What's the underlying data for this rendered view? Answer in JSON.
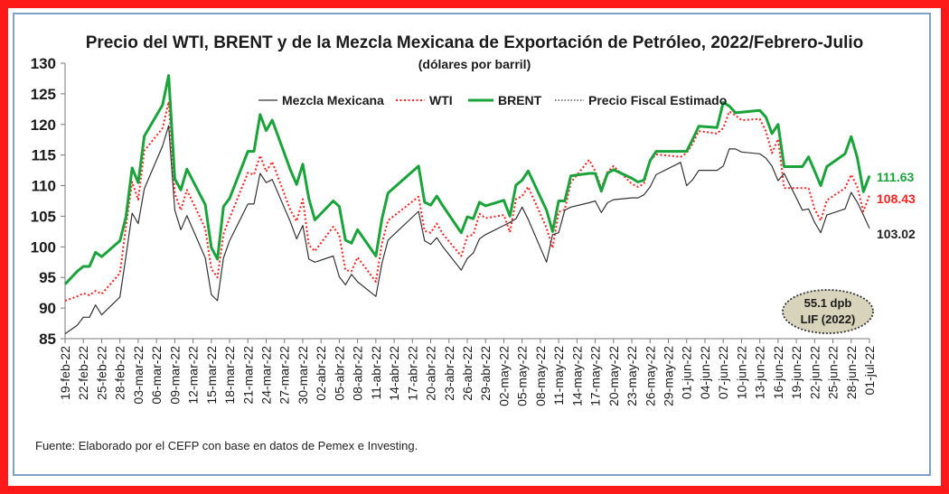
{
  "chart_data": {
    "type": "line",
    "title": "Precio del WTI, BRENT y de la Mezcla Mexicana de Exportación de Petróleo, 2022/Febrero-Julio",
    "subtitle": "(dólares por barril)",
    "source": "Fuente: Elaborado por el CEFP con base en datos de Pemex e Investing.",
    "ylim": [
      85,
      130
    ],
    "yticks": [
      85,
      90,
      95,
      100,
      105,
      110,
      115,
      120,
      125,
      130
    ],
    "xlabels": [
      "19-feb-22",
      "22-feb-22",
      "25-feb-22",
      "28-feb-22",
      "03-mar-22",
      "06-mar-22",
      "09-mar-22",
      "12-mar-22",
      "15-mar-22",
      "18-mar-22",
      "21-mar-22",
      "24-mar-22",
      "27-mar-22",
      "30-mar-22",
      "02-abr-22",
      "05-abr-22",
      "08-abr-22",
      "11-abr-22",
      "14-abr-22",
      "17-abr-22",
      "20-abr-22",
      "23-abr-22",
      "26-abr-22",
      "29-abr-22",
      "02-may-22",
      "05-may-22",
      "08-may-22",
      "11-may-22",
      "14-may-22",
      "17-may-22",
      "20-may-22",
      "23-may-22",
      "26-may-22",
      "29-may-22",
      "01-jun-22",
      "04-jun-22",
      "07-jun-22",
      "10-jun-22",
      "13-jun-22",
      "16-jun-22",
      "19-jun-22",
      "22-jun-22",
      "25-jun-22",
      "28-jun-22",
      "01-jul-22"
    ],
    "x_start": "19-feb-22",
    "x_end": "01-jul-22",
    "grid": false,
    "legend_placement": "top",
    "series": [
      {
        "name": "Mezcla Mexicana",
        "color": "#333333",
        "style": "solid",
        "last_label": "103.02",
        "x": [
          "19-feb-22",
          "21-feb-22",
          "22-feb-22",
          "23-feb-22",
          "24-feb-22",
          "25-feb-22",
          "28-feb-22",
          "01-mar-22",
          "02-mar-22",
          "03-mar-22",
          "04-mar-22",
          "07-mar-22",
          "08-mar-22",
          "09-mar-22",
          "10-mar-22",
          "11-mar-22",
          "14-mar-22",
          "15-mar-22",
          "16-mar-22",
          "17-mar-22",
          "18-mar-22",
          "21-mar-22",
          "22-mar-22",
          "23-mar-22",
          "24-mar-22",
          "25-mar-22",
          "28-mar-22",
          "29-mar-22",
          "30-mar-22",
          "31-mar-22",
          "01-abr-22",
          "04-abr-22",
          "05-abr-22",
          "06-abr-22",
          "07-abr-22",
          "08-abr-22",
          "11-abr-22",
          "12-abr-22",
          "13-abr-22",
          "18-abr-22",
          "19-abr-22",
          "20-abr-22",
          "21-abr-22",
          "22-abr-22",
          "25-abr-22",
          "26-abr-22",
          "27-abr-22",
          "28-abr-22",
          "29-abr-22",
          "02-may-22",
          "03-may-22",
          "04-may-22",
          "05-may-22",
          "06-may-22",
          "09-may-22",
          "10-may-22",
          "11-may-22",
          "12-may-22",
          "13-may-22",
          "16-may-22",
          "17-may-22",
          "18-may-22",
          "19-may-22",
          "20-may-22",
          "23-may-22",
          "24-may-22",
          "25-may-22",
          "26-may-22",
          "27-may-22",
          "31-may-22",
          "01-jun-22",
          "02-jun-22",
          "03-jun-22",
          "06-jun-22",
          "07-jun-22",
          "08-jun-22",
          "09-jun-22",
          "10-jun-22",
          "13-jun-22",
          "14-jun-22",
          "15-jun-22",
          "16-jun-22",
          "17-jun-22",
          "20-jun-22",
          "21-jun-22",
          "22-jun-22",
          "23-jun-22",
          "24-jun-22",
          "27-jun-22",
          "28-jun-22",
          "29-jun-22",
          "30-jun-22",
          "01-jul-22"
        ],
        "values": [
          85.8,
          87.2,
          88.5,
          88.5,
          90.5,
          88.9,
          91.8,
          98.5,
          105.5,
          103.8,
          109.5,
          116.5,
          119.8,
          106.0,
          102.8,
          105.1,
          98.2,
          92.2,
          91.2,
          98.2,
          101.0,
          107.0,
          107.0,
          112.0,
          110.5,
          111.0,
          104.0,
          101.3,
          103.5,
          98.0,
          97.5,
          98.5,
          95.1,
          93.8,
          95.5,
          94.3,
          91.9,
          97.3,
          101.1,
          105.8,
          101.0,
          100.4,
          101.5,
          100.0,
          96.2,
          98.1,
          99.0,
          101.3,
          102.0,
          103.5,
          104.0,
          104.6,
          106.5,
          104.5,
          97.5,
          102.0,
          102.3,
          106.0,
          106.5,
          107.2,
          107.5,
          105.6,
          107.2,
          107.7,
          108.0,
          108.0,
          108.5,
          109.8,
          111.8,
          113.8,
          110.0,
          111.0,
          112.5,
          112.5,
          113.2,
          116.0,
          116.0,
          115.5,
          115.2,
          114.5,
          113.2,
          110.8,
          112.0,
          106.0,
          106.2,
          104.0,
          102.3,
          105.2,
          106.2,
          108.9,
          107.3,
          105.2,
          103.02
        ]
      },
      {
        "name": "WTI",
        "color": "#ff2020",
        "style": "dotted",
        "last_label": "108.43",
        "x": [
          "19-feb-22",
          "21-feb-22",
          "22-feb-22",
          "23-feb-22",
          "24-feb-22",
          "25-feb-22",
          "28-feb-22",
          "01-mar-22",
          "02-mar-22",
          "03-mar-22",
          "04-mar-22",
          "07-mar-22",
          "08-mar-22",
          "09-mar-22",
          "10-mar-22",
          "11-mar-22",
          "14-mar-22",
          "15-mar-22",
          "16-mar-22",
          "17-mar-22",
          "18-mar-22",
          "21-mar-22",
          "22-mar-22",
          "23-mar-22",
          "24-mar-22",
          "25-mar-22",
          "28-mar-22",
          "29-mar-22",
          "30-mar-22",
          "31-mar-22",
          "01-abr-22",
          "04-abr-22",
          "05-abr-22",
          "06-abr-22",
          "07-abr-22",
          "08-abr-22",
          "11-abr-22",
          "12-abr-22",
          "13-abr-22",
          "18-abr-22",
          "19-abr-22",
          "20-abr-22",
          "21-abr-22",
          "22-abr-22",
          "25-abr-22",
          "26-abr-22",
          "27-abr-22",
          "28-abr-22",
          "29-abr-22",
          "02-may-22",
          "03-may-22",
          "04-may-22",
          "05-may-22",
          "06-may-22",
          "09-may-22",
          "10-may-22",
          "11-may-22",
          "12-may-22",
          "13-may-22",
          "16-may-22",
          "17-may-22",
          "18-may-22",
          "19-may-22",
          "20-may-22",
          "23-may-22",
          "24-may-22",
          "25-may-22",
          "26-may-22",
          "27-may-22",
          "31-may-22",
          "01-jun-22",
          "02-jun-22",
          "03-jun-22",
          "06-jun-22",
          "07-jun-22",
          "08-jun-22",
          "09-jun-22",
          "10-jun-22",
          "13-jun-22",
          "14-jun-22",
          "15-jun-22",
          "16-jun-22",
          "17-jun-22",
          "20-jun-22",
          "21-jun-22",
          "22-jun-22",
          "23-jun-22",
          "24-jun-22",
          "27-jun-22",
          "28-jun-22",
          "29-jun-22",
          "30-jun-22",
          "01-jul-22"
        ],
        "values": [
          91.2,
          91.9,
          92.4,
          92.1,
          92.8,
          92.3,
          95.7,
          103.4,
          110.6,
          107.7,
          115.7,
          119.4,
          123.7,
          108.7,
          106.0,
          109.3,
          103.0,
          96.4,
          95.0,
          102.1,
          104.7,
          112.1,
          111.8,
          114.9,
          112.3,
          113.9,
          105.9,
          104.2,
          107.8,
          100.3,
          99.3,
          103.3,
          101.9,
          96.2,
          96.0,
          98.3,
          94.3,
          100.6,
          104.3,
          108.2,
          102.6,
          102.3,
          103.8,
          102.1,
          98.5,
          101.7,
          102.0,
          105.4,
          104.7,
          105.2,
          102.4,
          107.8,
          108.3,
          109.8,
          103.1,
          99.8,
          105.7,
          106.1,
          110.5,
          114.2,
          112.4,
          109.6,
          112.2,
          113.2,
          110.3,
          109.8,
          110.3,
          114.1,
          115.1,
          114.7,
          115.3,
          116.9,
          118.9,
          118.5,
          119.4,
          122.1,
          121.5,
          120.7,
          120.9,
          118.9,
          115.3,
          117.6,
          109.6,
          109.6,
          109.6,
          106.2,
          104.3,
          107.6,
          109.6,
          111.8,
          109.8,
          105.8,
          108.43
        ]
      },
      {
        "name": "BRENT",
        "color": "#1aa33a",
        "style": "solid-thick",
        "last_label": "111.63",
        "x": [
          "19-feb-22",
          "21-feb-22",
          "22-feb-22",
          "23-feb-22",
          "24-feb-22",
          "25-feb-22",
          "28-feb-22",
          "01-mar-22",
          "02-mar-22",
          "03-mar-22",
          "04-mar-22",
          "07-mar-22",
          "08-mar-22",
          "09-mar-22",
          "10-mar-22",
          "11-mar-22",
          "14-mar-22",
          "15-mar-22",
          "16-mar-22",
          "17-mar-22",
          "18-mar-22",
          "21-mar-22",
          "22-mar-22",
          "23-mar-22",
          "24-mar-22",
          "25-mar-22",
          "28-mar-22",
          "29-mar-22",
          "30-mar-22",
          "31-mar-22",
          "01-abr-22",
          "04-abr-22",
          "05-abr-22",
          "06-abr-22",
          "07-abr-22",
          "08-abr-22",
          "11-abr-22",
          "12-abr-22",
          "13-abr-22",
          "18-abr-22",
          "19-abr-22",
          "20-abr-22",
          "21-abr-22",
          "22-abr-22",
          "25-abr-22",
          "26-abr-22",
          "27-abr-22",
          "28-abr-22",
          "29-abr-22",
          "02-may-22",
          "03-may-22",
          "04-may-22",
          "05-may-22",
          "06-may-22",
          "09-may-22",
          "10-may-22",
          "11-may-22",
          "12-may-22",
          "13-may-22",
          "16-may-22",
          "17-may-22",
          "18-may-22",
          "19-may-22",
          "20-may-22",
          "23-may-22",
          "24-may-22",
          "25-may-22",
          "26-may-22",
          "27-may-22",
          "31-may-22",
          "01-jun-22",
          "02-jun-22",
          "03-jun-22",
          "06-jun-22",
          "07-jun-22",
          "08-jun-22",
          "09-jun-22",
          "10-jun-22",
          "13-jun-22",
          "14-jun-22",
          "15-jun-22",
          "16-jun-22",
          "17-jun-22",
          "20-jun-22",
          "21-jun-22",
          "22-jun-22",
          "23-jun-22",
          "24-jun-22",
          "27-jun-22",
          "28-jun-22",
          "29-jun-22",
          "30-jun-22",
          "01-jul-22"
        ],
        "values": [
          93.9,
          96.0,
          96.8,
          96.8,
          99.1,
          98.4,
          101.0,
          104.9,
          112.9,
          110.5,
          118.1,
          123.2,
          128.0,
          111.1,
          109.3,
          112.7,
          106.9,
          99.9,
          98.0,
          106.6,
          107.9,
          115.6,
          115.6,
          121.6,
          119.0,
          120.7,
          112.5,
          110.2,
          113.5,
          107.9,
          104.4,
          107.5,
          106.6,
          101.1,
          100.6,
          102.8,
          98.5,
          104.6,
          108.8,
          113.2,
          107.3,
          106.8,
          108.3,
          106.7,
          102.3,
          104.9,
          104.6,
          107.3,
          106.7,
          107.6,
          105.0,
          110.1,
          110.9,
          112.4,
          106.0,
          102.5,
          107.5,
          107.5,
          111.6,
          112.0,
          112.0,
          109.1,
          112.0,
          112.6,
          111.2,
          110.6,
          110.9,
          114.1,
          115.6,
          115.6,
          115.6,
          117.6,
          119.7,
          119.5,
          123.6,
          123.0,
          121.9,
          122.0,
          122.3,
          121.2,
          118.5,
          120.0,
          113.1,
          113.1,
          114.7,
          112.4,
          110.0,
          113.1,
          115.2,
          118.0,
          114.6,
          109.0,
          111.63
        ]
      },
      {
        "name": "Precio Fiscal Estimado",
        "color": "#555555",
        "style": "dotted-fine",
        "constant": 55.1
      }
    ],
    "annotations": {
      "badge_line1": "55.1 dpb",
      "badge_line2": "LIF (2022)"
    }
  }
}
